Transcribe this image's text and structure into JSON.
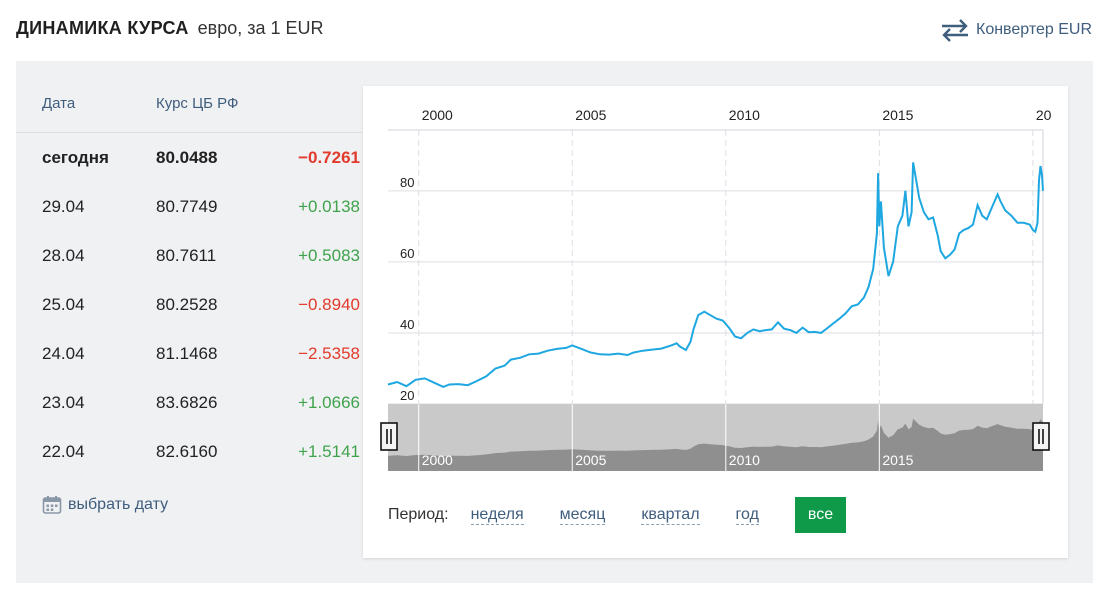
{
  "header": {
    "title": "ДИНАМИКА КУРСА",
    "subtitle": "евро, за 1 EUR",
    "converter_label": "Конвертер EUR"
  },
  "table": {
    "col_date": "Дата",
    "col_rate": "Курс ЦБ РФ",
    "rows": [
      {
        "date": "сегодня",
        "rate": "80.0488",
        "change": "−0.7261",
        "trend": "down"
      },
      {
        "date": "29.04",
        "rate": "80.7749",
        "change": "+0.0138",
        "trend": "up"
      },
      {
        "date": "28.04",
        "rate": "80.7611",
        "change": "+0.5083",
        "trend": "up"
      },
      {
        "date": "25.04",
        "rate": "80.2528",
        "change": "−0.8940",
        "trend": "down"
      },
      {
        "date": "24.04",
        "rate": "81.1468",
        "change": "−2.5358",
        "trend": "down"
      },
      {
        "date": "23.04",
        "rate": "83.6826",
        "change": "+1.0666",
        "trend": "up"
      },
      {
        "date": "22.04",
        "rate": "82.6160",
        "change": "+1.5141",
        "trend": "up"
      }
    ],
    "pick_date_label": "выбрать дату"
  },
  "period": {
    "label": "Период:",
    "options": [
      "неделя",
      "месяц",
      "квартал",
      "год"
    ],
    "active": "все"
  },
  "colors": {
    "line": "#1ea7e1",
    "negative": "#e23a2d",
    "positive": "#3fa34d",
    "active_button": "#0f9a4a",
    "link": "#3f5d7d"
  },
  "chart_data": {
    "type": "line",
    "title": "",
    "xlabel": "",
    "ylabel": "",
    "x_top_labels": [
      "2000",
      "2005",
      "2010",
      "2015",
      "20"
    ],
    "y_ticks": [
      "20",
      "40",
      "60",
      "80"
    ],
    "navigator_labels": [
      "2000",
      "2005",
      "2010",
      "2015"
    ],
    "xlim": [
      1999.0,
      2020.33
    ],
    "ylim": [
      20,
      96
    ],
    "grid": true,
    "series": [
      {
        "values": [
          [
            1999.0,
            25.5
          ],
          [
            1999.3,
            26.2
          ],
          [
            1999.6,
            25.0
          ],
          [
            1999.9,
            26.8
          ],
          [
            2000.2,
            27.2
          ],
          [
            2000.5,
            26.0
          ],
          [
            2000.8,
            24.8
          ],
          [
            2001.0,
            25.5
          ],
          [
            2001.3,
            25.6
          ],
          [
            2001.6,
            25.3
          ],
          [
            2001.9,
            26.5
          ],
          [
            2002.2,
            27.8
          ],
          [
            2002.5,
            30.0
          ],
          [
            2002.8,
            30.8
          ],
          [
            2003.0,
            32.5
          ],
          [
            2003.3,
            33.0
          ],
          [
            2003.6,
            34.0
          ],
          [
            2003.9,
            34.2
          ],
          [
            2004.2,
            35.0
          ],
          [
            2004.5,
            35.5
          ],
          [
            2004.8,
            35.8
          ],
          [
            2005.0,
            36.5
          ],
          [
            2005.3,
            35.5
          ],
          [
            2005.6,
            34.5
          ],
          [
            2005.9,
            34.0
          ],
          [
            2006.2,
            33.9
          ],
          [
            2006.5,
            34.2
          ],
          [
            2006.8,
            33.8
          ],
          [
            2007.0,
            34.5
          ],
          [
            2007.3,
            35.0
          ],
          [
            2007.6,
            35.3
          ],
          [
            2007.9,
            35.6
          ],
          [
            2008.2,
            36.4
          ],
          [
            2008.4,
            37.1
          ],
          [
            2008.5,
            36.2
          ],
          [
            2008.7,
            35.2
          ],
          [
            2008.85,
            37.5
          ],
          [
            2008.95,
            41.0
          ],
          [
            2009.1,
            45.0
          ],
          [
            2009.3,
            46.0
          ],
          [
            2009.5,
            45.0
          ],
          [
            2009.7,
            44.0
          ],
          [
            2009.9,
            43.5
          ],
          [
            2010.1,
            41.5
          ],
          [
            2010.3,
            39.0
          ],
          [
            2010.5,
            38.5
          ],
          [
            2010.7,
            40.0
          ],
          [
            2010.9,
            41.0
          ],
          [
            2011.1,
            40.5
          ],
          [
            2011.3,
            40.8
          ],
          [
            2011.5,
            41.0
          ],
          [
            2011.7,
            43.0
          ],
          [
            2011.9,
            41.2
          ],
          [
            2012.1,
            40.8
          ],
          [
            2012.3,
            40.0
          ],
          [
            2012.5,
            41.5
          ],
          [
            2012.7,
            40.2
          ],
          [
            2012.9,
            40.3
          ],
          [
            2013.1,
            40.0
          ],
          [
            2013.3,
            41.3
          ],
          [
            2013.5,
            42.7
          ],
          [
            2013.7,
            44.0
          ],
          [
            2013.9,
            45.5
          ],
          [
            2014.1,
            47.5
          ],
          [
            2014.3,
            48.0
          ],
          [
            2014.5,
            50.0
          ],
          [
            2014.65,
            53.0
          ],
          [
            2014.8,
            58.0
          ],
          [
            2014.92,
            68.0
          ],
          [
            2014.96,
            85.0
          ],
          [
            2015.0,
            70.0
          ],
          [
            2015.05,
            77.0
          ],
          [
            2015.15,
            64.0
          ],
          [
            2015.3,
            56.0
          ],
          [
            2015.45,
            60.0
          ],
          [
            2015.6,
            70.0
          ],
          [
            2015.75,
            73.0
          ],
          [
            2015.85,
            80.0
          ],
          [
            2015.95,
            70.0
          ],
          [
            2016.05,
            74.0
          ],
          [
            2016.1,
            88.0
          ],
          [
            2016.2,
            83.0
          ],
          [
            2016.3,
            78.0
          ],
          [
            2016.45,
            74.0
          ],
          [
            2016.6,
            72.0
          ],
          [
            2016.75,
            72.5
          ],
          [
            2016.9,
            67.5
          ],
          [
            2017.0,
            63.0
          ],
          [
            2017.15,
            61.0
          ],
          [
            2017.3,
            62.0
          ],
          [
            2017.45,
            63.5
          ],
          [
            2017.6,
            68.0
          ],
          [
            2017.75,
            69.0
          ],
          [
            2017.9,
            69.5
          ],
          [
            2018.05,
            70.5
          ],
          [
            2018.2,
            76.0
          ],
          [
            2018.35,
            73.0
          ],
          [
            2018.5,
            72.0
          ],
          [
            2018.7,
            76.0
          ],
          [
            2018.85,
            79.0
          ],
          [
            2018.95,
            77.0
          ],
          [
            2019.1,
            74.5
          ],
          [
            2019.3,
            73.0
          ],
          [
            2019.5,
            71.0
          ],
          [
            2019.7,
            71.0
          ],
          [
            2019.9,
            70.5
          ],
          [
            2020.0,
            69.0
          ],
          [
            2020.08,
            68.5
          ],
          [
            2020.15,
            71.0
          ],
          [
            2020.2,
            83.0
          ],
          [
            2020.25,
            87.0
          ],
          [
            2020.3,
            84.0
          ],
          [
            2020.33,
            80.0
          ]
        ]
      }
    ]
  }
}
